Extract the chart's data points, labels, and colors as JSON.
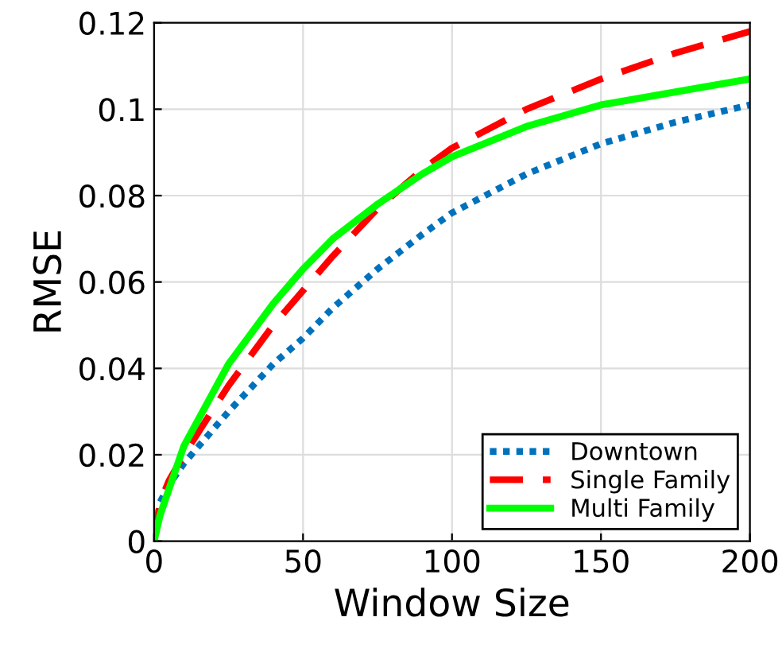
{
  "chart_data": {
    "type": "line",
    "xlabel": "Window Size",
    "ylabel": "RMSE",
    "xlim": [
      0,
      200
    ],
    "xticks": [
      0,
      50,
      100,
      150,
      200
    ],
    "ylim": [
      0,
      0.12
    ],
    "yticks": [
      0,
      0.02,
      0.04,
      0.06,
      0.08,
      {
        "value": 0.1,
        "label": "0.1"
      },
      0.12
    ],
    "grid": true,
    "legend": "bottom right",
    "series": [
      {
        "name": "Downtown",
        "color": "#0072bd",
        "line_style": "dotted",
        "x": [
          0,
          2,
          5,
          10,
          25,
          40,
          50,
          60,
          75,
          90,
          100,
          125,
          150,
          175,
          200
        ],
        "values": [
          0,
          0.009,
          0.013,
          0.018,
          0.03,
          0.041,
          0.047,
          0.054,
          0.063,
          0.071,
          0.076,
          0.085,
          0.092,
          0.097,
          0.101
        ]
      },
      {
        "name": "Single Family",
        "color": "#ff0000",
        "line_style": "dashed",
        "x": [
          0,
          2,
          5,
          10,
          25,
          40,
          50,
          60,
          75,
          90,
          100,
          125,
          150,
          175,
          200
        ],
        "values": [
          0,
          0.009,
          0.014,
          0.02,
          0.036,
          0.05,
          0.058,
          0.066,
          0.077,
          0.086,
          0.091,
          0.1,
          0.107,
          0.113,
          0.118
        ]
      },
      {
        "name": "Multi Family",
        "color": "#00ff00",
        "line_style": "solid",
        "x": [
          0,
          2,
          5,
          10,
          25,
          40,
          50,
          60,
          75,
          90,
          100,
          125,
          150,
          175,
          200
        ],
        "values": [
          0,
          0.006,
          0.012,
          0.022,
          0.041,
          0.055,
          0.063,
          0.07,
          0.078,
          0.085,
          0.089,
          0.096,
          0.101,
          0.104,
          0.107
        ]
      }
    ]
  }
}
